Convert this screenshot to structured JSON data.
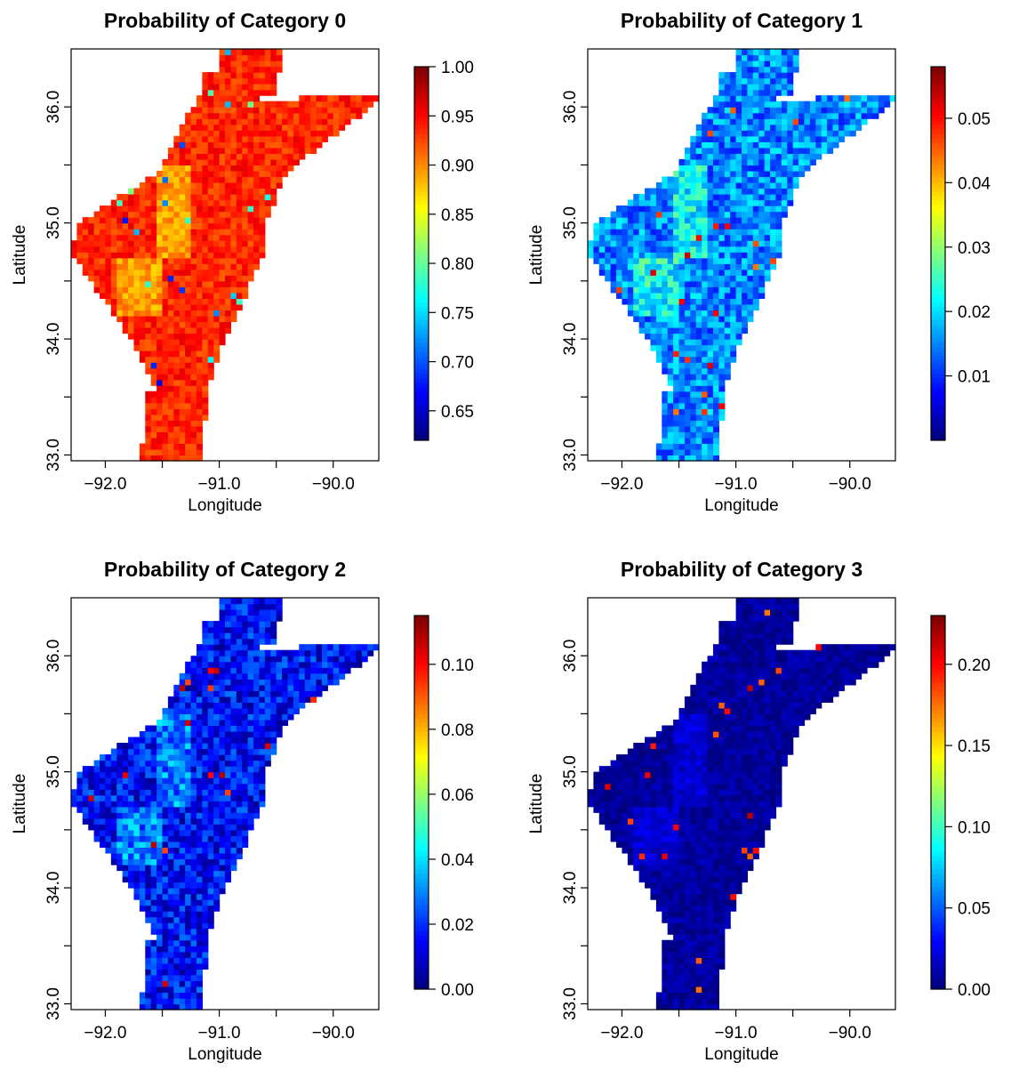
{
  "chart_data": [
    {
      "type": "heatmap",
      "title": "Probability of Category 0",
      "xlabel": "Longitude",
      "ylabel": "Latitude",
      "xlim": [
        -92.3,
        -89.6
      ],
      "ylim": [
        32.95,
        36.5
      ],
      "xticks": [
        -92.0,
        -91.0,
        -90.0
      ],
      "xtick_labels": [
        "−92.0",
        "−91.0",
        "−90.0"
      ],
      "yticks": [
        33.0,
        34.0,
        35.0,
        36.0
      ],
      "ytick_labels": [
        "33.0",
        "34.0",
        "35.0",
        "36.0"
      ],
      "colorbar": {
        "min": 0.62,
        "max": 1.0,
        "ticks": [
          0.65,
          0.7,
          0.75,
          0.8,
          0.85,
          0.9,
          0.95,
          1.0
        ],
        "tick_labels": [
          "0.65",
          "0.70",
          "0.75",
          "0.80",
          "0.85",
          "0.90",
          "0.95",
          "1.00"
        ]
      },
      "field": {
        "typical_value": 0.96,
        "value_range": [
          0.62,
          1.0
        ]
      },
      "colormap": [
        "#00007f",
        "#0000ff",
        "#007fff",
        "#00ffff",
        "#7fff7f",
        "#ffff00",
        "#ff7f00",
        "#ff0000",
        "#7f0000"
      ]
    },
    {
      "type": "heatmap",
      "title": "Probability of Category 1",
      "xlabel": "Longitude",
      "ylabel": "Latitude",
      "xlim": [
        -92.3,
        -89.6
      ],
      "ylim": [
        32.95,
        36.5
      ],
      "xticks": [
        -92.0,
        -91.0,
        -90.0
      ],
      "xtick_labels": [
        "−92.0",
        "−91.0",
        "−90.0"
      ],
      "yticks": [
        33.0,
        34.0,
        35.0,
        36.0
      ],
      "ytick_labels": [
        "33.0",
        "34.0",
        "35.0",
        "36.0"
      ],
      "colorbar": {
        "min": 0.0,
        "max": 0.058,
        "ticks": [
          0.01,
          0.02,
          0.03,
          0.04,
          0.05
        ],
        "tick_labels": [
          "0.01",
          "0.02",
          "0.03",
          "0.04",
          "0.05"
        ]
      },
      "field": {
        "typical_value": 0.015,
        "value_range": [
          0.0,
          0.058
        ]
      },
      "colormap": [
        "#00007f",
        "#0000ff",
        "#007fff",
        "#00ffff",
        "#7fff7f",
        "#ffff00",
        "#ff7f00",
        "#ff0000",
        "#7f0000"
      ]
    },
    {
      "type": "heatmap",
      "title": "Probability of Category 2",
      "xlabel": "Longitude",
      "ylabel": "Latitude",
      "xlim": [
        -92.3,
        -89.6
      ],
      "ylim": [
        32.95,
        36.5
      ],
      "xticks": [
        -92.0,
        -91.0,
        -90.0
      ],
      "xtick_labels": [
        "−92.0",
        "−91.0",
        "−90.0"
      ],
      "yticks": [
        33.0,
        34.0,
        35.0,
        36.0
      ],
      "ytick_labels": [
        "33.0",
        "34.0",
        "35.0",
        "36.0"
      ],
      "colorbar": {
        "min": 0.0,
        "max": 0.115,
        "ticks": [
          0.0,
          0.02,
          0.04,
          0.06,
          0.08,
          0.1
        ],
        "tick_labels": [
          "0.00",
          "0.02",
          "0.04",
          "0.06",
          "0.08",
          "0.10"
        ]
      },
      "field": {
        "typical_value": 0.015,
        "value_range": [
          0.0,
          0.115
        ]
      },
      "colormap": [
        "#00007f",
        "#0000ff",
        "#007fff",
        "#00ffff",
        "#7fff7f",
        "#ffff00",
        "#ff7f00",
        "#ff0000",
        "#7f0000"
      ]
    },
    {
      "type": "heatmap",
      "title": "Probability of Category 3",
      "xlabel": "Longitude",
      "ylabel": "Latitude",
      "xlim": [
        -92.3,
        -89.6
      ],
      "ylim": [
        32.95,
        36.5
      ],
      "xticks": [
        -92.0,
        -91.0,
        -90.0
      ],
      "xtick_labels": [
        "−92.0",
        "−91.0",
        "−90.0"
      ],
      "yticks": [
        33.0,
        34.0,
        35.0,
        36.0
      ],
      "ytick_labels": [
        "33.0",
        "34.0",
        "35.0",
        "36.0"
      ],
      "colorbar": {
        "min": 0.0,
        "max": 0.23,
        "ticks": [
          0.0,
          0.05,
          0.1,
          0.15,
          0.2
        ],
        "tick_labels": [
          "0.00",
          "0.05",
          "0.10",
          "0.15",
          "0.20"
        ]
      },
      "field": {
        "typical_value": 0.01,
        "value_range": [
          0.0,
          0.23
        ]
      },
      "colormap": [
        "#00007f",
        "#0000ff",
        "#007fff",
        "#00ffff",
        "#7fff7f",
        "#ffff00",
        "#ff7f00",
        "#ff0000",
        "#7f0000"
      ]
    }
  ]
}
